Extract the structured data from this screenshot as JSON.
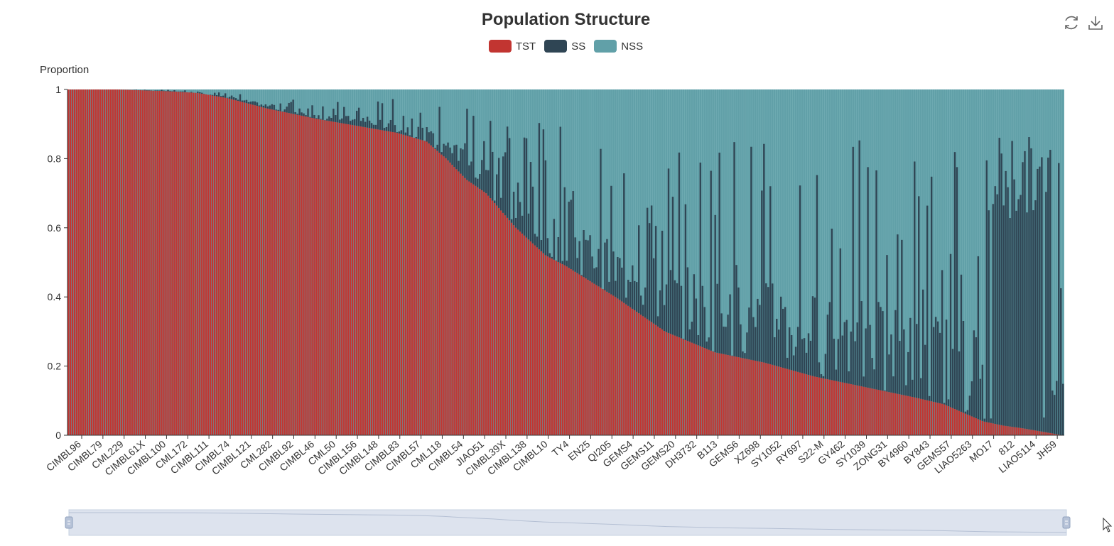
{
  "title": "Population Structure",
  "legend": [
    {
      "name": "TST",
      "color": "#c23531"
    },
    {
      "name": "SS",
      "color": "#2f4554"
    },
    {
      "name": "NSS",
      "color": "#61a0a8"
    }
  ],
  "toolbox": {
    "restore_icon": "refresh-icon",
    "save_icon": "download-icon"
  },
  "chart_data": {
    "type": "bar",
    "stacked": true,
    "title": "Population Structure",
    "ylabel": "Proportion",
    "xlabel": "",
    "ylim": [
      0,
      1
    ],
    "yticks": [
      0,
      0.2,
      0.4,
      0.6,
      0.8,
      1
    ],
    "grid": false,
    "legend_position": "top-center",
    "sorted_by": "TST descending",
    "x_tick_labels": [
      "CIMBL96",
      "CIMBL79",
      "CML229",
      "CIMBL61X",
      "CIMBL100",
      "CML172",
      "CIMBL111",
      "CIMBL74",
      "CIMBL121",
      "CML282",
      "CIMBL92",
      "CIMBL46",
      "CML50",
      "CIMBL156",
      "CIMBL148",
      "CIMBL83",
      "CIMBL57",
      "CML118",
      "CIMBL54",
      "JIAO51",
      "CIMBL39X",
      "CIMBL138",
      "CIMBL10",
      "TY4",
      "EN25",
      "QI205",
      "GEMS4",
      "GEMS11",
      "GEMS20",
      "DH3732",
      "B113",
      "GEMS6",
      "XZ698",
      "SY1052",
      "RY697",
      "S22-M",
      "GY462",
      "SY1039",
      "ZONG31",
      "BY4960",
      "BY843",
      "GEMS57",
      "LIAO5263",
      "MO17",
      "812",
      "LIAO5114",
      "JH59"
    ],
    "series_names": [
      "TST",
      "SS",
      "NSS"
    ],
    "tst_curve": {
      "x": [
        0,
        0.05,
        0.1,
        0.13,
        0.16,
        0.2,
        0.25,
        0.3,
        0.33,
        0.36,
        0.38,
        0.4,
        0.42,
        0.45,
        0.48,
        0.5,
        0.55,
        0.6,
        0.65,
        0.7,
        0.75,
        0.8,
        0.85,
        0.88,
        0.9,
        0.92,
        0.94,
        0.96,
        1.0
      ],
      "tst": [
        1.0,
        1.0,
        0.995,
        0.99,
        0.975,
        0.945,
        0.915,
        0.89,
        0.875,
        0.85,
        0.8,
        0.74,
        0.7,
        0.6,
        0.52,
        0.49,
        0.4,
        0.3,
        0.24,
        0.21,
        0.17,
        0.14,
        0.11,
        0.09,
        0.065,
        0.04,
        0.028,
        0.02,
        0.0
      ],
      "ss_max": [
        0.0,
        0.0,
        0.004,
        0.008,
        0.015,
        0.04,
        0.05,
        0.08,
        0.1,
        0.12,
        0.15,
        0.25,
        0.3,
        0.35,
        0.38,
        0.4,
        0.45,
        0.6,
        0.64,
        0.68,
        0.7,
        0.72,
        0.74,
        0.76,
        0.78,
        0.8,
        0.85,
        0.87,
        0.88
      ]
    },
    "sample_count": 470
  }
}
